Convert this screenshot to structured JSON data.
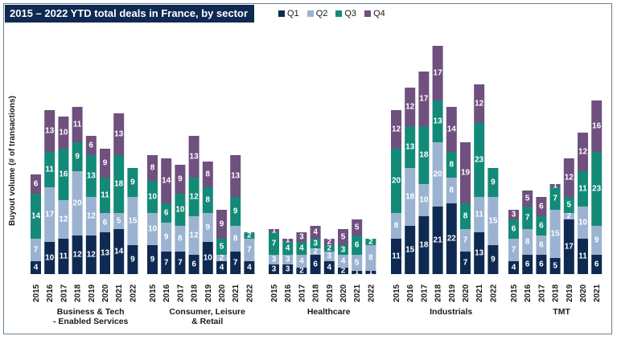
{
  "chart_data": {
    "type": "bar",
    "stacked": true,
    "title": "2015 – 2022 YTD total deals in France, by sector",
    "ylabel": "Buyout volume (# of transactions)",
    "ylim": [
      0,
      64
    ],
    "series_names": [
      "Q1",
      "Q2",
      "Q3",
      "Q4"
    ],
    "colors": [
      "#0e2a52",
      "#9bb3d1",
      "#138a78",
      "#6f507f"
    ],
    "groups": [
      {
        "name": "Business & Tech - Enabled Services",
        "label_lines": [
          "Business & Tech",
          "- Enabled Services"
        ],
        "years": [
          "2015",
          "2016",
          "2017",
          "2018",
          "2019",
          "2020",
          "2021",
          "2022"
        ],
        "values": [
          [
            4,
            7,
            14,
            6
          ],
          [
            10,
            17,
            11,
            13
          ],
          [
            11,
            12,
            16,
            10
          ],
          [
            12,
            20,
            9,
            11
          ],
          [
            12,
            12,
            13,
            6
          ],
          [
            13,
            6,
            11,
            9
          ],
          [
            14,
            5,
            18,
            13
          ],
          [
            9,
            15,
            9,
            0
          ]
        ]
      },
      {
        "name": "Consumer, Leisure & Retail",
        "label_lines": [
          "Consumer, Leisure",
          "& Retail"
        ],
        "years": [
          "2015",
          "2016",
          "2017",
          "2018",
          "2019",
          "2020",
          "2021",
          "2022"
        ],
        "values": [
          [
            9,
            10,
            10,
            8
          ],
          [
            7,
            9,
            6,
            14
          ],
          [
            7,
            8,
            10,
            9
          ],
          [
            6,
            12,
            12,
            13
          ],
          [
            10,
            9,
            8,
            8
          ],
          [
            4,
            2,
            5,
            9
          ],
          [
            7,
            8,
            9,
            13
          ],
          [
            4,
            7,
            2,
            0
          ]
        ]
      },
      {
        "name": "Healthcare",
        "label_lines": [
          "Healthcare"
        ],
        "years": [
          "2015",
          "2016",
          "2017",
          "2018",
          "2019",
          "2020",
          "2021",
          "2022"
        ],
        "values": [
          [
            3,
            3,
            7,
            1
          ],
          [
            3,
            3,
            4,
            1
          ],
          [
            2,
            4,
            4,
            3
          ],
          [
            6,
            2,
            3,
            4
          ],
          [
            4,
            3,
            2,
            2
          ],
          [
            2,
            4,
            3,
            5
          ],
          [
            1,
            5,
            6,
            5
          ],
          [
            1,
            8,
            2,
            0
          ]
        ]
      },
      {
        "name": "Industrials",
        "label_lines": [
          "Industrials"
        ],
        "years": [
          "2015",
          "2016",
          "2017",
          "2018",
          "2019",
          "2020",
          "2021",
          "2022"
        ],
        "values": [
          [
            11,
            8,
            20,
            12
          ],
          [
            15,
            18,
            13,
            12
          ],
          [
            18,
            10,
            18,
            17
          ],
          [
            21,
            20,
            13,
            17
          ],
          [
            22,
            8,
            8,
            14
          ],
          [
            7,
            7,
            8,
            19
          ],
          [
            13,
            11,
            23,
            12
          ],
          [
            9,
            15,
            9,
            0
          ]
        ]
      },
      {
        "name": "TMT",
        "label_lines": [
          "TMT"
        ],
        "years": [
          "2015",
          "2016",
          "2017",
          "2018",
          "2019",
          "2020",
          "2021"
        ],
        "values": [
          [
            4,
            7,
            6,
            3
          ],
          [
            6,
            8,
            7,
            5
          ],
          [
            6,
            6,
            6,
            6
          ],
          [
            5,
            15,
            7,
            1
          ],
          [
            17,
            2,
            5,
            12
          ],
          [
            11,
            10,
            11,
            12
          ],
          [
            6,
            9,
            23,
            16
          ]
        ]
      }
    ]
  }
}
